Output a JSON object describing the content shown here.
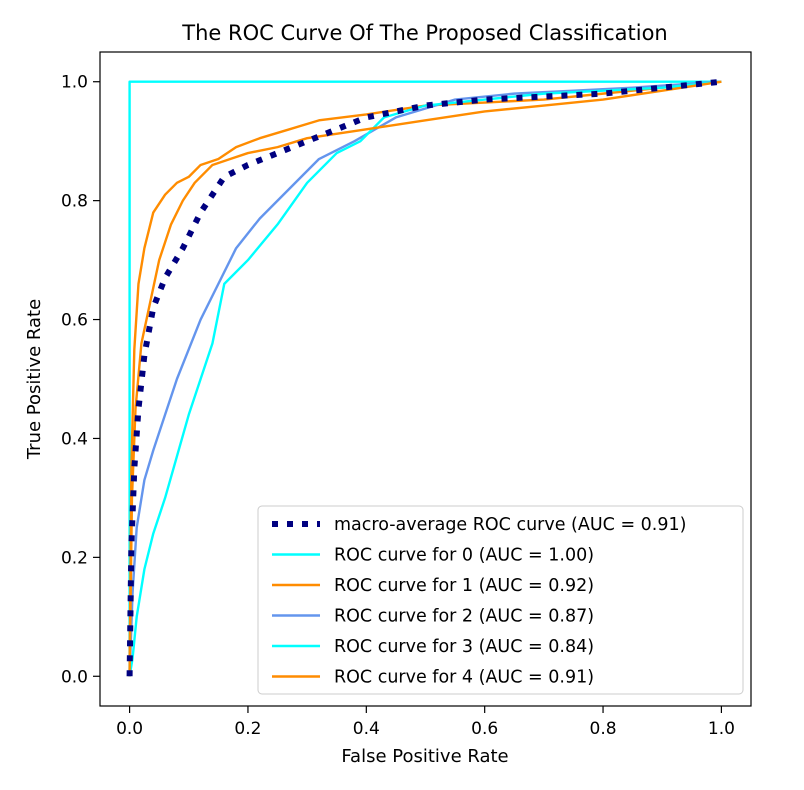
{
  "chart_data": {
    "type": "line",
    "title": "The ROC Curve Of The Proposed Classification",
    "xlabel": "False Positive Rate",
    "ylabel": "True Positive Rate",
    "xlim": [
      -0.05,
      1.05
    ],
    "ylim": [
      -0.05,
      1.05
    ],
    "xticks": [
      "0.0",
      "0.2",
      "0.4",
      "0.6",
      "0.8",
      "1.0"
    ],
    "yticks": [
      "0.0",
      "0.2",
      "0.4",
      "0.6",
      "0.8",
      "1.0"
    ],
    "grid": false,
    "legend_location": "lower right",
    "series": [
      {
        "name": "macro-average ROC curve (AUC = 0.91)",
        "color": "#000080",
        "style": "dotted",
        "x": [
          0,
          0.003,
          0.008,
          0.015,
          0.025,
          0.04,
          0.06,
          0.09,
          0.12,
          0.16,
          0.2,
          0.25,
          0.3,
          0.4,
          0.5,
          0.6,
          0.7,
          0.8,
          0.9,
          1.0
        ],
        "y": [
          0.0,
          0.22,
          0.35,
          0.45,
          0.54,
          0.62,
          0.67,
          0.72,
          0.78,
          0.84,
          0.86,
          0.88,
          0.9,
          0.94,
          0.96,
          0.97,
          0.975,
          0.98,
          0.99,
          1.0
        ]
      },
      {
        "name": "ROC curve for 0 (AUC = 1.00)",
        "color": "#00FFFF",
        "style": "solid",
        "x": [
          0,
          0,
          1.0
        ],
        "y": [
          0,
          1.0,
          1.0
        ]
      },
      {
        "name": "ROC curve for 1 (AUC = 0.92)",
        "color": "#FF8C00",
        "style": "solid",
        "x": [
          0,
          0.003,
          0.008,
          0.015,
          0.025,
          0.04,
          0.06,
          0.08,
          0.1,
          0.12,
          0.15,
          0.18,
          0.22,
          0.27,
          0.32,
          0.4,
          0.5,
          0.6,
          0.7,
          0.8,
          0.9,
          1.0
        ],
        "y": [
          0,
          0.35,
          0.55,
          0.66,
          0.72,
          0.78,
          0.81,
          0.83,
          0.84,
          0.86,
          0.87,
          0.89,
          0.905,
          0.92,
          0.935,
          0.945,
          0.96,
          0.965,
          0.97,
          0.98,
          0.99,
          1.0
        ]
      },
      {
        "name": "ROC curve for 2 (AUC = 0.87)",
        "color": "#6495ED",
        "style": "solid",
        "x": [
          0,
          0.005,
          0.012,
          0.025,
          0.04,
          0.06,
          0.08,
          0.1,
          0.12,
          0.15,
          0.18,
          0.22,
          0.27,
          0.32,
          0.38,
          0.45,
          0.55,
          0.65,
          0.75,
          0.85,
          1.0
        ],
        "y": [
          0,
          0.14,
          0.25,
          0.33,
          0.38,
          0.44,
          0.5,
          0.55,
          0.6,
          0.66,
          0.72,
          0.77,
          0.82,
          0.87,
          0.9,
          0.94,
          0.97,
          0.98,
          0.985,
          0.99,
          1.0
        ]
      },
      {
        "name": "ROC curve for 3 (AUC = 0.84)",
        "color": "#00FFFF",
        "style": "solid",
        "x": [
          0,
          0.005,
          0.012,
          0.025,
          0.04,
          0.06,
          0.08,
          0.1,
          0.12,
          0.14,
          0.16,
          0.2,
          0.25,
          0.3,
          0.35,
          0.39,
          0.43,
          0.5,
          0.6,
          0.7,
          0.8,
          0.9,
          1.0
        ],
        "y": [
          0,
          0.03,
          0.1,
          0.18,
          0.24,
          0.3,
          0.37,
          0.44,
          0.5,
          0.56,
          0.66,
          0.7,
          0.76,
          0.83,
          0.88,
          0.9,
          0.94,
          0.96,
          0.97,
          0.98,
          0.985,
          0.99,
          1.0
        ]
      },
      {
        "name": "ROC curve for 4 (AUC = 0.91)",
        "color": "#FF8C00",
        "style": "solid",
        "x": [
          0,
          0.004,
          0.01,
          0.02,
          0.035,
          0.05,
          0.07,
          0.09,
          0.11,
          0.14,
          0.17,
          0.2,
          0.25,
          0.3,
          0.4,
          0.5,
          0.6,
          0.7,
          0.8,
          0.9,
          1.0
        ],
        "y": [
          0,
          0.3,
          0.45,
          0.56,
          0.63,
          0.7,
          0.76,
          0.8,
          0.83,
          0.86,
          0.87,
          0.88,
          0.89,
          0.905,
          0.92,
          0.935,
          0.95,
          0.96,
          0.97,
          0.985,
          1.0
        ]
      }
    ]
  }
}
